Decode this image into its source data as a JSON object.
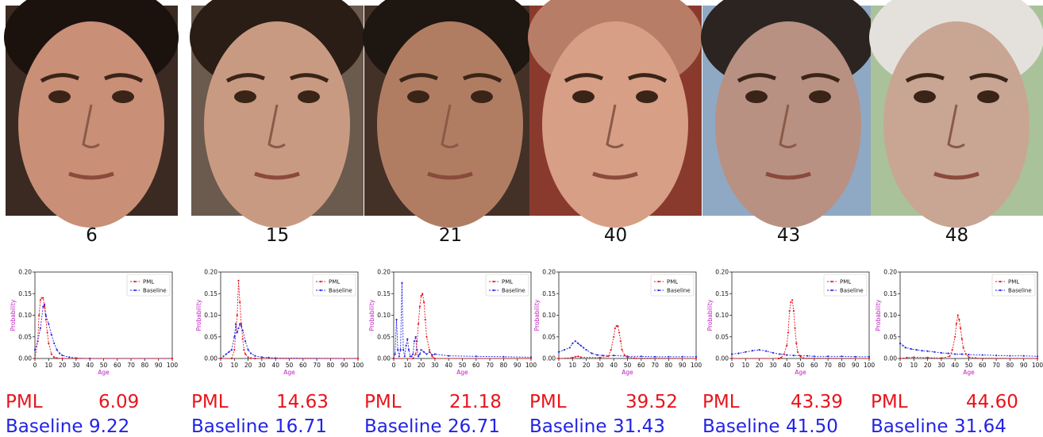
{
  "samples": [
    {
      "age": "6",
      "pml_label": "PML",
      "pml_value": "6.09",
      "base_label": "Baseline",
      "base_value": "9.22",
      "skin": "#c98f77",
      "bg": "#3a2a22",
      "hair": "#1b120e"
    },
    {
      "age": "15",
      "pml_label": "PML",
      "pml_value": "14.63",
      "base_label": "Baseline",
      "base_value": "16.71",
      "skin": "#c99a82",
      "bg": "#6b5a4e",
      "hair": "#2a1d16"
    },
    {
      "age": "21",
      "pml_label": "PML",
      "pml_value": "21.18",
      "base_label": "Baseline",
      "base_value": "26.71",
      "skin": "#b07d63",
      "bg": "#433128",
      "hair": "#1e1610"
    },
    {
      "age": "40",
      "pml_label": "PML",
      "pml_value": "39.52",
      "base_label": "Baseline",
      "base_value": "31.43",
      "skin": "#d79f86",
      "bg": "#8a3a2c",
      "hair": "#b87d66"
    },
    {
      "age": "43",
      "pml_label": "PML",
      "pml_value": "43.39",
      "base_label": "Baseline",
      "base_value": "41.50",
      "skin": "#b89182",
      "bg": "#8fa9c4",
      "hair": "#2c2420"
    },
    {
      "age": "48",
      "pml_label": "PML",
      "pml_value": "44.60",
      "base_label": "Baseline",
      "base_value": "31.64",
      "skin": "#c9a594",
      "bg": "#a9c29a",
      "hair": "#e4e1dc"
    }
  ],
  "chart_data": [
    {
      "type": "line",
      "ylabel": "Probability",
      "xlabel": "Age",
      "xlim": [
        0,
        100
      ],
      "ylim": [
        0,
        0.2
      ],
      "xticks": [
        "0",
        "10",
        "20",
        "30",
        "40",
        "50",
        "60",
        "70",
        "80",
        "90",
        "100"
      ],
      "yticks": [
        "0.00",
        "0.05",
        "0.10",
        "0.15",
        "0.20"
      ],
      "legend_position": "top-right",
      "series": [
        {
          "name": "PML",
          "color": "#e8141c",
          "x": [
            0,
            2,
            3,
            4,
            5,
            6,
            7,
            8,
            9,
            10,
            12,
            14,
            16,
            20,
            30,
            100
          ],
          "y": [
            0.0,
            0.04,
            0.1,
            0.135,
            0.14,
            0.14,
            0.12,
            0.09,
            0.06,
            0.035,
            0.01,
            0.003,
            0.001,
            0.0,
            0.0,
            0.0
          ]
        },
        {
          "name": "Baseline",
          "color": "#2323e6",
          "x": [
            0,
            2,
            4,
            6,
            7,
            8,
            10,
            12,
            14,
            16,
            18,
            20,
            25,
            30,
            40,
            100
          ],
          "y": [
            0.02,
            0.04,
            0.07,
            0.12,
            0.125,
            0.1,
            0.08,
            0.055,
            0.035,
            0.02,
            0.012,
            0.007,
            0.003,
            0.001,
            0.0,
            0.0
          ]
        }
      ]
    },
    {
      "type": "line",
      "ylabel": "Probability",
      "xlabel": "Age",
      "xlim": [
        0,
        100
      ],
      "ylim": [
        0,
        0.2
      ],
      "xticks": [
        "0",
        "10",
        "20",
        "30",
        "40",
        "50",
        "60",
        "70",
        "80",
        "90",
        "100"
      ],
      "yticks": [
        "0.00",
        "0.05",
        "0.10",
        "0.15",
        "0.20"
      ],
      "legend_position": "top-right",
      "series": [
        {
          "name": "PML",
          "color": "#e8141c",
          "x": [
            0,
            8,
            10,
            12,
            13,
            14,
            15,
            16,
            17,
            18,
            20,
            22,
            25,
            100
          ],
          "y": [
            0.0,
            0.0,
            0.02,
            0.1,
            0.18,
            0.13,
            0.08,
            0.045,
            0.02,
            0.01,
            0.003,
            0.001,
            0.0,
            0.0
          ]
        },
        {
          "name": "Baseline",
          "color": "#2323e6",
          "x": [
            0,
            2,
            4,
            6,
            8,
            10,
            11,
            12,
            13,
            14,
            15,
            16,
            18,
            20,
            22,
            25,
            30,
            35,
            40,
            100
          ],
          "y": [
            0.0,
            0.005,
            0.01,
            0.015,
            0.02,
            0.05,
            0.08,
            0.06,
            0.07,
            0.08,
            0.075,
            0.065,
            0.04,
            0.02,
            0.012,
            0.006,
            0.003,
            0.002,
            0.001,
            0.0
          ]
        }
      ]
    },
    {
      "type": "line",
      "ylabel": "Probability",
      "xlabel": "Age",
      "xlim": [
        0,
        100
      ],
      "ylim": [
        0,
        0.2
      ],
      "xticks": [
        "0",
        "10",
        "20",
        "30",
        "40",
        "50",
        "60",
        "70",
        "80",
        "90",
        "100"
      ],
      "yticks": [
        "0.00",
        "0.05",
        "0.10",
        "0.15",
        "0.20"
      ],
      "legend_position": "top-right",
      "series": [
        {
          "name": "PML",
          "color": "#e8141c",
          "x": [
            0,
            14,
            16,
            17,
            18,
            19,
            20,
            21,
            22,
            23,
            24,
            26,
            28,
            30,
            100
          ],
          "y": [
            0.0,
            0.0,
            0.01,
            0.04,
            0.08,
            0.12,
            0.145,
            0.15,
            0.13,
            0.09,
            0.05,
            0.02,
            0.005,
            0.0,
            0.0
          ]
        },
        {
          "name": "Baseline",
          "color": "#2323e6",
          "x": [
            0,
            1,
            2,
            3,
            4,
            5,
            6,
            7,
            8,
            9,
            10,
            11,
            12,
            13,
            14,
            15,
            16,
            17,
            18,
            19,
            20,
            22,
            24,
            26,
            28,
            30,
            40,
            60,
            80,
            100
          ],
          "y": [
            0.0,
            0.01,
            0.09,
            0.02,
            0.005,
            0.02,
            0.175,
            0.02,
            0.005,
            0.03,
            0.045,
            0.02,
            0.005,
            0.005,
            0.01,
            0.04,
            0.05,
            0.02,
            0.005,
            0.01,
            0.02,
            0.015,
            0.01,
            0.015,
            0.008,
            0.01,
            0.006,
            0.005,
            0.004,
            0.003
          ]
        }
      ]
    },
    {
      "type": "line",
      "ylabel": "Probability",
      "xlabel": "Age",
      "xlim": [
        0,
        100
      ],
      "ylim": [
        0,
        0.2
      ],
      "xticks": [
        "0",
        "10",
        "20",
        "30",
        "40",
        "50",
        "60",
        "70",
        "80",
        "90",
        "100"
      ],
      "yticks": [
        "0.00",
        "0.05",
        "0.10",
        "0.15",
        "0.20"
      ],
      "legend_position": "top-right",
      "series": [
        {
          "name": "PML",
          "color": "#e8141c",
          "x": [
            0,
            10,
            12,
            14,
            16,
            30,
            36,
            38,
            40,
            41,
            42,
            43,
            44,
            45,
            46,
            48,
            50,
            55,
            100
          ],
          "y": [
            0.0,
            0.002,
            0.004,
            0.005,
            0.003,
            0.002,
            0.005,
            0.02,
            0.05,
            0.07,
            0.075,
            0.075,
            0.06,
            0.04,
            0.02,
            0.007,
            0.003,
            0.001,
            0.0
          ]
        },
        {
          "name": "Baseline",
          "color": "#2323e6",
          "x": [
            0,
            4,
            8,
            10,
            12,
            14,
            16,
            18,
            20,
            24,
            28,
            32,
            40,
            50,
            60,
            70,
            80,
            90,
            100
          ],
          "y": [
            0.015,
            0.02,
            0.025,
            0.035,
            0.04,
            0.035,
            0.03,
            0.025,
            0.02,
            0.012,
            0.008,
            0.007,
            0.007,
            0.005,
            0.005,
            0.004,
            0.004,
            0.004,
            0.004
          ]
        }
      ]
    },
    {
      "type": "line",
      "ylabel": "Probability",
      "xlabel": "Age",
      "xlim": [
        0,
        100
      ],
      "ylim": [
        0,
        0.2
      ],
      "xticks": [
        "0",
        "10",
        "20",
        "30",
        "40",
        "50",
        "60",
        "70",
        "80",
        "90",
        "100"
      ],
      "yticks": [
        "0.00",
        "0.05",
        "0.10",
        "0.15",
        "0.20"
      ],
      "legend_position": "top-right",
      "series": [
        {
          "name": "PML",
          "color": "#e8141c",
          "x": [
            0,
            34,
            36,
            38,
            40,
            41,
            42,
            43,
            44,
            45,
            46,
            47,
            48,
            50,
            52,
            100
          ],
          "y": [
            0.0,
            0.0,
            0.002,
            0.01,
            0.03,
            0.06,
            0.11,
            0.13,
            0.135,
            0.11,
            0.07,
            0.035,
            0.015,
            0.004,
            0.001,
            0.0
          ]
        },
        {
          "name": "Baseline",
          "color": "#2323e6",
          "x": [
            0,
            5,
            10,
            15,
            20,
            25,
            30,
            35,
            40,
            45,
            50,
            55,
            60,
            70,
            80,
            90,
            100
          ],
          "y": [
            0.01,
            0.012,
            0.015,
            0.018,
            0.02,
            0.017,
            0.013,
            0.01,
            0.008,
            0.007,
            0.006,
            0.006,
            0.005,
            0.005,
            0.005,
            0.004,
            0.004
          ]
        }
      ]
    },
    {
      "type": "line",
      "ylabel": "Probability",
      "xlabel": "Age",
      "xlim": [
        0,
        100
      ],
      "ylim": [
        0,
        0.2
      ],
      "xticks": [
        "0",
        "10",
        "20",
        "30",
        "40",
        "50",
        "60",
        "70",
        "80",
        "90",
        "100"
      ],
      "yticks": [
        "0.00",
        "0.05",
        "0.10",
        "0.15",
        "0.20"
      ],
      "legend_position": "top-right",
      "series": [
        {
          "name": "PML",
          "color": "#e8141c",
          "x": [
            0,
            5,
            10,
            20,
            30,
            36,
            38,
            40,
            41,
            42,
            43,
            44,
            45,
            46,
            48,
            50,
            55,
            100
          ],
          "y": [
            0.0,
            0.002,
            0.003,
            0.002,
            0.001,
            0.005,
            0.02,
            0.05,
            0.08,
            0.1,
            0.09,
            0.07,
            0.045,
            0.025,
            0.01,
            0.003,
            0.001,
            0.0
          ]
        },
        {
          "name": "Baseline",
          "color": "#2323e6",
          "x": [
            0,
            2,
            4,
            8,
            12,
            16,
            20,
            25,
            30,
            35,
            40,
            45,
            50,
            60,
            70,
            80,
            90,
            100
          ],
          "y": [
            0.035,
            0.03,
            0.025,
            0.022,
            0.02,
            0.018,
            0.017,
            0.015,
            0.013,
            0.012,
            0.01,
            0.01,
            0.009,
            0.008,
            0.007,
            0.006,
            0.006,
            0.005
          ]
        }
      ]
    }
  ]
}
